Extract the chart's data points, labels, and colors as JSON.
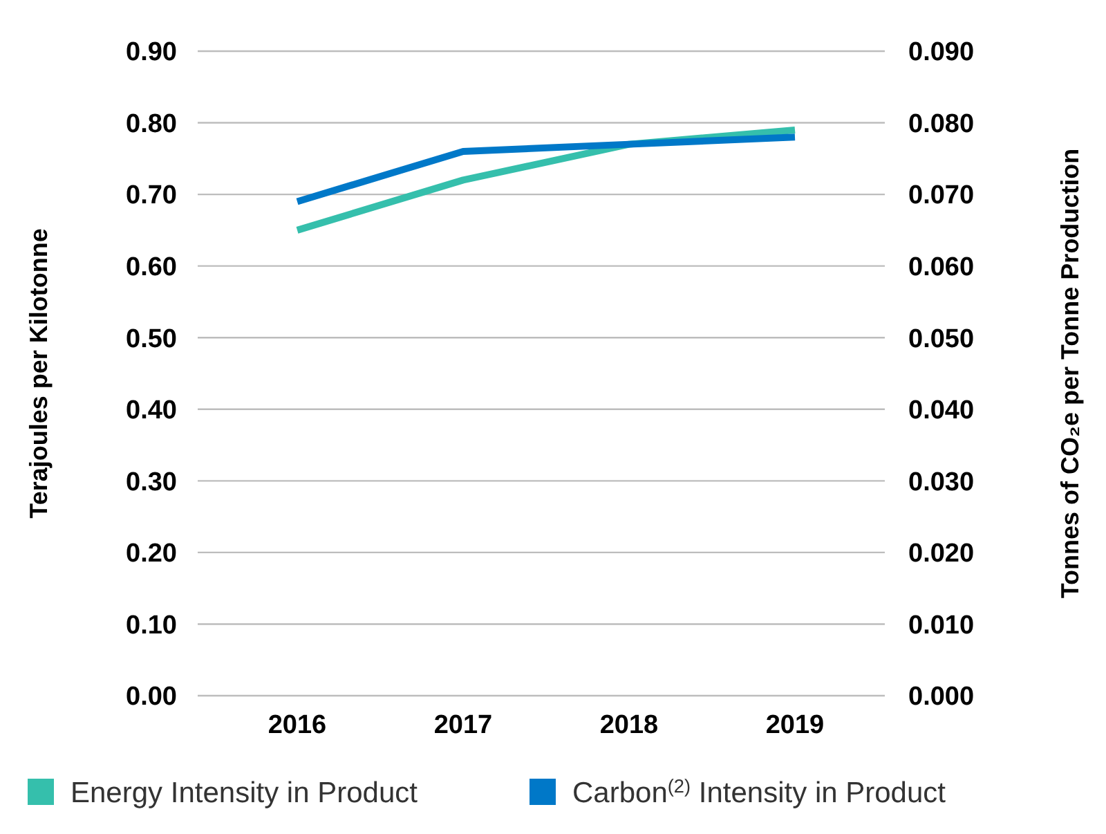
{
  "chart_data": {
    "type": "line",
    "categories": [
      "2016",
      "2017",
      "2018",
      "2019"
    ],
    "ylabel": "Terajoules per Kilotonne",
    "y2label": "Tonnes of CO₂e per Tonne Production",
    "series": [
      {
        "name": "Energy Intensity in Product",
        "color": "#35bfac",
        "values": [
          0.65,
          0.72,
          0.77,
          0.79
        ]
      },
      {
        "name": "Carbon$^{(2)}$ Intensity in Product",
        "color": "#0078c8",
        "values": [
          0.069,
          0.076,
          0.077,
          0.078
        ],
        "axis": "y2"
      }
    ],
    "ylim": [
      0,
      0.9
    ],
    "yticks": [
      {
        "value": 0,
        "label": "0.00"
      },
      {
        "value": 0.1,
        "label": "0.10"
      },
      {
        "value": 0.2,
        "label": "0.20"
      },
      {
        "value": 0.3,
        "label": "0.30"
      },
      {
        "value": 0.4,
        "label": "0.40"
      },
      {
        "value": 0.5,
        "label": "0.50"
      },
      {
        "value": 0.6,
        "label": "0.60"
      },
      {
        "value": 0.7,
        "label": "0.70"
      },
      {
        "value": 0.8,
        "label": "0.80"
      },
      {
        "value": 0.9,
        "label": "0.90"
      }
    ],
    "y2lim": [
      0,
      0.09
    ],
    "y2ticks": [
      {
        "value": 0,
        "label": "0.000"
      },
      {
        "value": 0.01,
        "label": "0.010"
      },
      {
        "value": 0.02,
        "label": "0.020"
      },
      {
        "value": 0.03,
        "label": "0.030"
      },
      {
        "value": 0.04,
        "label": "0.040"
      },
      {
        "value": 0.05,
        "label": "0.050"
      },
      {
        "value": 0.06,
        "label": "0.060"
      },
      {
        "value": 0.07,
        "label": "0.070"
      },
      {
        "value": 0.08,
        "label": "0.080"
      },
      {
        "value": 0.09,
        "label": "0.090"
      }
    ],
    "grid": "y",
    "legend": "bottom",
    "marker": "none",
    "line_style": "solid"
  }
}
